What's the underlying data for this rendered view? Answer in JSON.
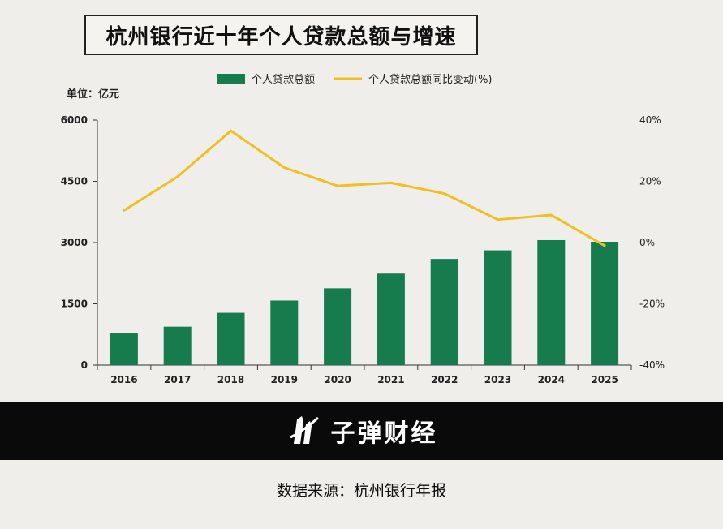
{
  "title": "杭州银行近十年个人贷款总额与增速",
  "brand": {
    "name": "子弹财经",
    "icon": "bullet-logo-icon"
  },
  "source": "数据来源：杭州银行年报",
  "colors": {
    "bar": "#167c4e",
    "line": "#f0c020",
    "axis": "#333333",
    "band": "#0a0a0a"
  },
  "chart_data": {
    "type": "bar",
    "unit_label": "单位：亿元",
    "categories": [
      "2016",
      "2017",
      "2018",
      "2019",
      "2020",
      "2021",
      "2022",
      "2023",
      "2024",
      "2025"
    ],
    "series": [
      {
        "name": "个人贷款总额",
        "type": "bar",
        "axis": "left",
        "values": [
          780,
          940,
          1280,
          1580,
          1880,
          2240,
          2600,
          2810,
          3060,
          3020
        ]
      },
      {
        "name": "个人贷款总额同比变动(%)",
        "type": "line",
        "axis": "right",
        "values": [
          10.5,
          21.5,
          36.5,
          24.5,
          18.5,
          19.5,
          16,
          7.5,
          9,
          -1
        ]
      }
    ],
    "left_axis": {
      "ticks": [
        "0",
        "1500",
        "3000",
        "4500",
        "6000"
      ],
      "range": [
        0,
        6000
      ]
    },
    "right_axis": {
      "ticks": [
        "-40%",
        "-20%",
        "0%",
        "20%",
        "40%"
      ],
      "range": [
        -40,
        40
      ]
    },
    "legend": "top",
    "grid": false
  }
}
